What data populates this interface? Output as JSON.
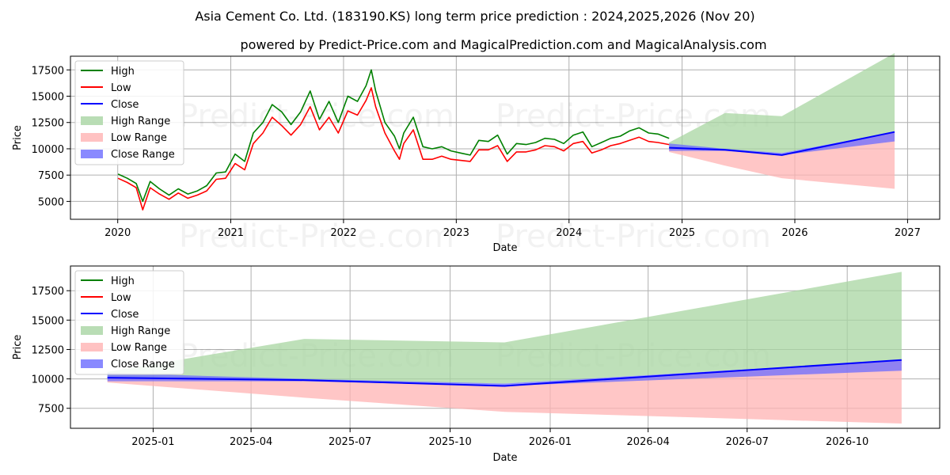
{
  "title": "Asia Cement Co. Ltd. (183190.KS) long term price prediction : 2024,2025,2026 (Nov 20)",
  "subtitle": "powered by Predict-Price.com and MagicalPrediction.com and MagicalAnalysis.com",
  "watermark": "Predict-Price.com",
  "colors": {
    "high": "#008000",
    "low": "#ff0000",
    "close": "#0000ff",
    "high_range": "#a8d5a2",
    "low_range": "#ffb3b3",
    "close_range": "#6b6bff"
  },
  "legend": {
    "high": "High",
    "low": "Low",
    "close": "Close",
    "high_range": "High Range",
    "low_range": "Low Range",
    "close_range": "Close Range"
  },
  "chart_data": [
    {
      "type": "line",
      "title": "",
      "xlabel": "Date",
      "ylabel": "Price",
      "x_ticks": [
        "2020",
        "2021",
        "2022",
        "2023",
        "2024",
        "2025",
        "2026",
        "2027"
      ],
      "y_ticks": [
        5000,
        7500,
        10000,
        12500,
        15000,
        17500
      ],
      "xlim": [
        "2019-08-01",
        "2027-04-15"
      ],
      "ylim": [
        3300,
        18800
      ],
      "grid": true,
      "legend_position": "top-left",
      "history": {
        "dates": [
          "2020-01-02",
          "2020-02-01",
          "2020-03-01",
          "2020-03-22",
          "2020-04-15",
          "2020-05-15",
          "2020-06-15",
          "2020-07-15",
          "2020-08-15",
          "2020-09-15",
          "2020-10-15",
          "2020-11-15",
          "2020-12-15",
          "2021-01-15",
          "2021-02-15",
          "2021-03-15",
          "2021-04-15",
          "2021-05-15",
          "2021-06-15",
          "2021-07-15",
          "2021-08-15",
          "2021-09-15",
          "2021-10-15",
          "2021-11-15",
          "2021-12-15",
          "2022-01-15",
          "2022-02-15",
          "2022-03-15",
          "2022-04-01",
          "2022-04-15",
          "2022-05-15",
          "2022-06-15",
          "2022-07-01",
          "2022-07-15",
          "2022-08-15",
          "2022-09-15",
          "2022-10-15",
          "2022-11-15",
          "2022-12-15",
          "2023-01-15",
          "2023-02-15",
          "2023-03-15",
          "2023-04-15",
          "2023-05-15",
          "2023-06-15",
          "2023-07-15",
          "2023-08-15",
          "2023-09-15",
          "2023-10-15",
          "2023-11-15",
          "2023-12-15",
          "2024-01-15",
          "2024-02-15",
          "2024-03-15",
          "2024-04-15",
          "2024-05-15",
          "2024-06-15",
          "2024-07-15",
          "2024-08-15",
          "2024-09-15",
          "2024-10-15",
          "2024-11-20"
        ],
        "high": [
          7600,
          7200,
          6700,
          5000,
          6900,
          6200,
          5600,
          6200,
          5700,
          6000,
          6500,
          7700,
          7800,
          9500,
          8800,
          11500,
          12500,
          14200,
          13500,
          12300,
          13500,
          15500,
          12800,
          14500,
          12500,
          15000,
          14500,
          16000,
          17500,
          15500,
          12500,
          11200,
          10000,
          11500,
          13000,
          10200,
          10000,
          10200,
          9800,
          9600,
          9400,
          10800,
          10700,
          11300,
          9500,
          10500,
          10400,
          10600,
          11000,
          10900,
          10500,
          11300,
          11600,
          10200,
          10600,
          11000,
          11200,
          11700,
          12000,
          11500,
          11400,
          11000
        ],
        "low": [
          7200,
          6800,
          6300,
          4200,
          6300,
          5700,
          5200,
          5800,
          5300,
          5600,
          6000,
          7100,
          7200,
          8600,
          8000,
          10500,
          11500,
          13000,
          12200,
          11300,
          12300,
          14000,
          11800,
          13000,
          11500,
          13600,
          13200,
          14600,
          15800,
          14000,
          11500,
          9800,
          9000,
          10500,
          11800,
          9000,
          9000,
          9300,
          9000,
          8900,
          8800,
          9900,
          9900,
          10300,
          8800,
          9700,
          9700,
          9900,
          10300,
          10200,
          9800,
          10500,
          10700,
          9600,
          9900,
          10300,
          10500,
          10800,
          11100,
          10700,
          10600,
          10400
        ]
      },
      "forecast": {
        "dates": [
          "2024-11-20",
          "2025-05-20",
          "2025-11-20",
          "2026-11-20"
        ],
        "close": [
          10100,
          9900,
          9400,
          11600
        ],
        "close_range_upper": [
          10500,
          10000,
          9600,
          11600
        ],
        "close_range_lower": [
          9800,
          9800,
          9400,
          10700
        ],
        "high_range_upper": [
          10600,
          13400,
          13100,
          19100
        ],
        "high_range_lower": [
          10100,
          9900,
          9600,
          11600
        ],
        "low_range_upper": [
          10100,
          9900,
          9400,
          11600
        ],
        "low_range_lower": [
          9700,
          8400,
          7200,
          6200
        ]
      }
    },
    {
      "type": "area",
      "title": "",
      "xlabel": "Date",
      "ylabel": "Price",
      "x_ticks": [
        "2025-01",
        "2025-04",
        "2025-07",
        "2025-10",
        "2026-01",
        "2026-04",
        "2026-07",
        "2026-10"
      ],
      "x_tick_dates": [
        "2025-01-01",
        "2025-04-01",
        "2025-07-01",
        "2025-10-01",
        "2026-01-01",
        "2026-04-01",
        "2026-07-01",
        "2026-10-01"
      ],
      "y_ticks": [
        7500,
        10000,
        12500,
        15000,
        17500
      ],
      "xlim": [
        "2024-10-17",
        "2026-12-25"
      ],
      "ylim": [
        5800,
        19600
      ],
      "grid": true,
      "legend_position": "top-left",
      "forecast": {
        "dates": [
          "2024-11-20",
          "2025-05-20",
          "2025-11-20",
          "2026-11-20"
        ],
        "close": [
          10100,
          9900,
          9400,
          11600
        ],
        "close_range_upper": [
          10500,
          10000,
          9600,
          11600
        ],
        "close_range_lower": [
          9800,
          9800,
          9400,
          10700
        ],
        "high_range_upper": [
          10600,
          13400,
          13100,
          19100
        ],
        "high_range_lower": [
          10100,
          9900,
          9600,
          11600
        ],
        "low_range_upper": [
          10100,
          9900,
          9400,
          11600
        ],
        "low_range_lower": [
          9700,
          8400,
          7200,
          6200
        ]
      }
    }
  ]
}
